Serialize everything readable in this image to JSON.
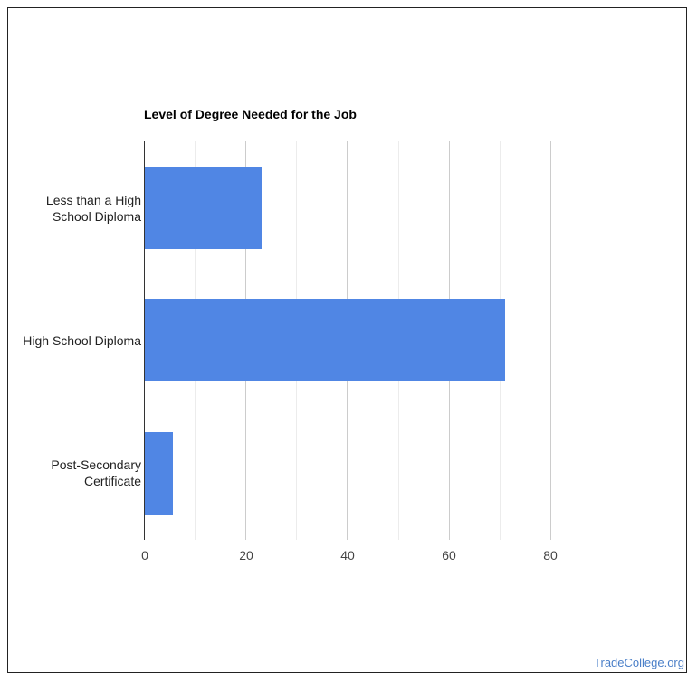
{
  "chart_data": {
    "type": "bar",
    "orientation": "horizontal",
    "title": "Level of Degree Needed for the Job",
    "categories": [
      "Less than a High School Diploma",
      "High School Diploma",
      "Post-Secondary Certificate"
    ],
    "category_lines": [
      [
        "Less than a High",
        "School Diploma"
      ],
      [
        "High School Diploma"
      ],
      [
        "Post-Secondary",
        "Certificate"
      ]
    ],
    "values": [
      23.2,
      71.1,
      5.7
    ],
    "xlabel": "",
    "ylabel": "",
    "xlim": [
      0,
      80
    ],
    "xticks": [
      "0",
      "20",
      "40",
      "60",
      "80"
    ],
    "grid": true,
    "legend": "none",
    "bar_color": "#5086e4"
  },
  "footer": {
    "brand": "TradeCollege.org"
  }
}
